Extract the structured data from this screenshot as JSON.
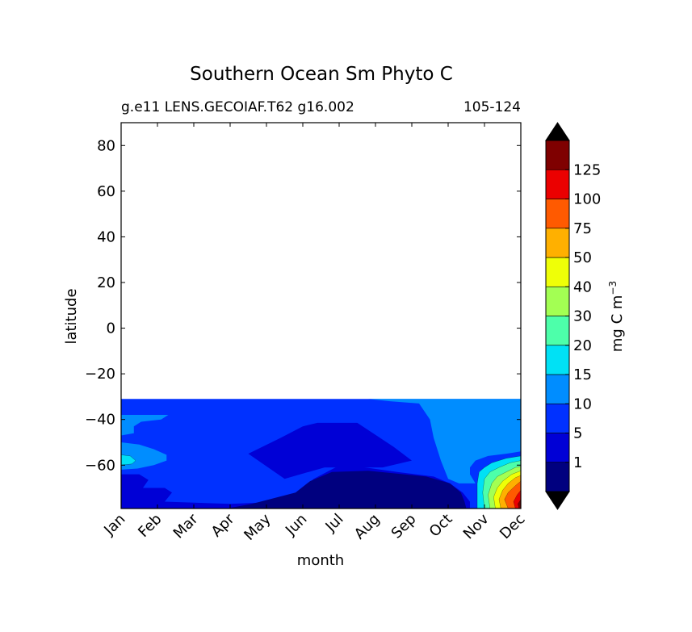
{
  "chart_data": {
    "type": "heatmap",
    "title": "Southern Ocean Sm Phyto C",
    "subtitle_left": "g.e11 LENS.GECOIAF.T62 g16.002",
    "subtitle_right": "105-124",
    "xlabel": "month",
    "ylabel": "latitude",
    "x_categories": [
      "Jan",
      "Feb",
      "Mar",
      "Apr",
      "May",
      "Jun",
      "Jul",
      "Aug",
      "Sep",
      "Oct",
      "Nov",
      "Dec"
    ],
    "xlim": [
      0,
      11
    ],
    "ylim": [
      -79,
      90
    ],
    "yticks": [
      80,
      60,
      40,
      20,
      0,
      -20,
      -40,
      -60
    ],
    "ytick_labels": [
      "80",
      "60",
      "40",
      "20",
      "0",
      "−20",
      "−40",
      "−60"
    ],
    "data_northern_limit": -31,
    "colorbar": {
      "label": "mg C m",
      "label_superscript": "−3",
      "bounds": [
        0,
        1,
        5,
        10,
        15,
        20,
        30,
        40,
        50,
        75,
        100,
        125,
        150
      ],
      "tick_labels": [
        "1",
        "5",
        "10",
        "15",
        "20",
        "30",
        "40",
        "50",
        "75",
        "100",
        "125"
      ],
      "colors": [
        "#00007f",
        "#0000d6",
        "#0031ff",
        "#008dff",
        "#00e1f5",
        "#4dffaa",
        "#a3ff53",
        "#efff07",
        "#ffb000",
        "#ff5a00",
        "#eb0000",
        "#7f0000"
      ],
      "extend": "both",
      "under_color": "#000000",
      "over_color": "#000000"
    },
    "regions": [
      {
        "level": 2,
        "polygon": [
          [
            0,
            -31
          ],
          [
            11,
            -31
          ],
          [
            11,
            -79
          ],
          [
            0,
            -79
          ]
        ]
      },
      {
        "level": 3,
        "polygon": [
          [
            6.8,
            -31
          ],
          [
            11,
            -31
          ],
          [
            11,
            -54
          ],
          [
            10.6,
            -55
          ],
          [
            10.1,
            -56
          ],
          [
            9.75,
            -58
          ],
          [
            9.6,
            -61
          ],
          [
            9.6,
            -64
          ],
          [
            9.75,
            -68
          ],
          [
            9.3,
            -68
          ],
          [
            9,
            -66
          ],
          [
            8.8,
            -58
          ],
          [
            8.6,
            -48
          ],
          [
            8.5,
            -40
          ],
          [
            8.2,
            -33
          ],
          [
            7.4,
            -32
          ],
          [
            6.8,
            -31
          ]
        ]
      },
      {
        "level": 3,
        "polygon": [
          [
            0,
            -38
          ],
          [
            1.3,
            -38
          ],
          [
            1.1,
            -40
          ],
          [
            0.55,
            -41
          ],
          [
            0.35,
            -43
          ],
          [
            0.35,
            -46
          ],
          [
            0,
            -47
          ]
        ]
      },
      {
        "level": 3,
        "polygon": [
          [
            0,
            -50
          ],
          [
            0.5,
            -51
          ],
          [
            0.9,
            -53
          ],
          [
            1.25,
            -55.5
          ],
          [
            1.25,
            -58
          ],
          [
            0.9,
            -60
          ],
          [
            0.45,
            -61.5
          ],
          [
            0,
            -62
          ]
        ]
      },
      {
        "level": 4,
        "polygon": [
          [
            0,
            -55.5
          ],
          [
            0.25,
            -56
          ],
          [
            0.4,
            -58
          ],
          [
            0.3,
            -59.5
          ],
          [
            0,
            -60
          ]
        ]
      },
      {
        "level": 4,
        "polygon": [
          [
            10.2,
            -59
          ],
          [
            10.6,
            -57
          ],
          [
            11,
            -56
          ],
          [
            11,
            -79
          ],
          [
            9.8,
            -79
          ],
          [
            9.8,
            -68
          ],
          [
            9.85,
            -63
          ],
          [
            10.0,
            -61
          ]
        ]
      },
      {
        "level": 5,
        "polygon": [
          [
            10.4,
            -61
          ],
          [
            10.7,
            -59
          ],
          [
            11,
            -58
          ],
          [
            11,
            -79
          ],
          [
            10.0,
            -79
          ],
          [
            9.95,
            -72
          ],
          [
            10.0,
            -66
          ],
          [
            10.15,
            -63
          ]
        ]
      },
      {
        "level": 6,
        "polygon": [
          [
            10.6,
            -63
          ],
          [
            10.85,
            -61
          ],
          [
            11,
            -60.5
          ],
          [
            11,
            -79
          ],
          [
            10.15,
            -79
          ],
          [
            10.1,
            -73
          ],
          [
            10.2,
            -68
          ],
          [
            10.35,
            -65
          ]
        ]
      },
      {
        "level": 7,
        "polygon": [
          [
            10.75,
            -64
          ],
          [
            11,
            -62.5
          ],
          [
            11,
            -79
          ],
          [
            10.3,
            -79
          ],
          [
            10.25,
            -74
          ],
          [
            10.35,
            -70
          ],
          [
            10.5,
            -67
          ]
        ]
      },
      {
        "level": 8,
        "polygon": [
          [
            10.85,
            -65.5
          ],
          [
            11,
            -64.5
          ],
          [
            11,
            -79
          ],
          [
            10.45,
            -79
          ],
          [
            10.4,
            -75
          ],
          [
            10.5,
            -71
          ],
          [
            10.65,
            -68
          ]
        ]
      },
      {
        "level": 9,
        "polygon": [
          [
            11,
            -67
          ],
          [
            11,
            -79
          ],
          [
            10.65,
            -79
          ],
          [
            10.55,
            -75
          ],
          [
            10.65,
            -72
          ],
          [
            10.85,
            -69
          ]
        ]
      },
      {
        "level": 10,
        "polygon": [
          [
            11,
            -71
          ],
          [
            11,
            -79
          ],
          [
            10.85,
            -79
          ],
          [
            10.8,
            -76
          ],
          [
            10.9,
            -73
          ]
        ]
      },
      {
        "level": 11,
        "polygon": [
          [
            11,
            -75
          ],
          [
            11,
            -79
          ],
          [
            10.95,
            -79
          ],
          [
            10.92,
            -77
          ]
        ]
      },
      {
        "level": 1,
        "polygon": [
          [
            0,
            -64
          ],
          [
            0.5,
            -64
          ],
          [
            0.75,
            -66.5
          ],
          [
            0.6,
            -70
          ],
          [
            1.2,
            -70
          ],
          [
            1.4,
            -72
          ],
          [
            1.2,
            -76
          ],
          [
            3,
            -77
          ],
          [
            4.5,
            -76
          ],
          [
            5.4,
            -72
          ],
          [
            5.1,
            -69
          ],
          [
            5.3,
            -66
          ],
          [
            5.9,
            -61
          ],
          [
            6.5,
            -60.5
          ],
          [
            7.6,
            -63
          ],
          [
            8.6,
            -65
          ],
          [
            9.05,
            -68
          ],
          [
            9.4,
            -72
          ],
          [
            9.6,
            -76
          ],
          [
            9.6,
            -79
          ],
          [
            0,
            -79
          ]
        ]
      },
      {
        "level": 1,
        "polygon": [
          [
            3.5,
            -55
          ],
          [
            4.4,
            -48
          ],
          [
            5.0,
            -43
          ],
          [
            5.4,
            -41.5
          ],
          [
            6.5,
            -41.5
          ],
          [
            7.5,
            -52
          ],
          [
            8.0,
            -58
          ],
          [
            7.2,
            -61
          ],
          [
            5.6,
            -61
          ],
          [
            4.5,
            -66
          ]
        ]
      },
      {
        "level": 0,
        "polygon": [
          [
            2.9,
            -79
          ],
          [
            3.6,
            -77
          ],
          [
            4.8,
            -72
          ],
          [
            5.2,
            -67
          ],
          [
            5.8,
            -63
          ],
          [
            6.8,
            -62.5
          ],
          [
            8.4,
            -65
          ],
          [
            9.05,
            -68
          ],
          [
            9.35,
            -72
          ],
          [
            9.45,
            -76
          ],
          [
            9.5,
            -79
          ]
        ]
      }
    ]
  }
}
